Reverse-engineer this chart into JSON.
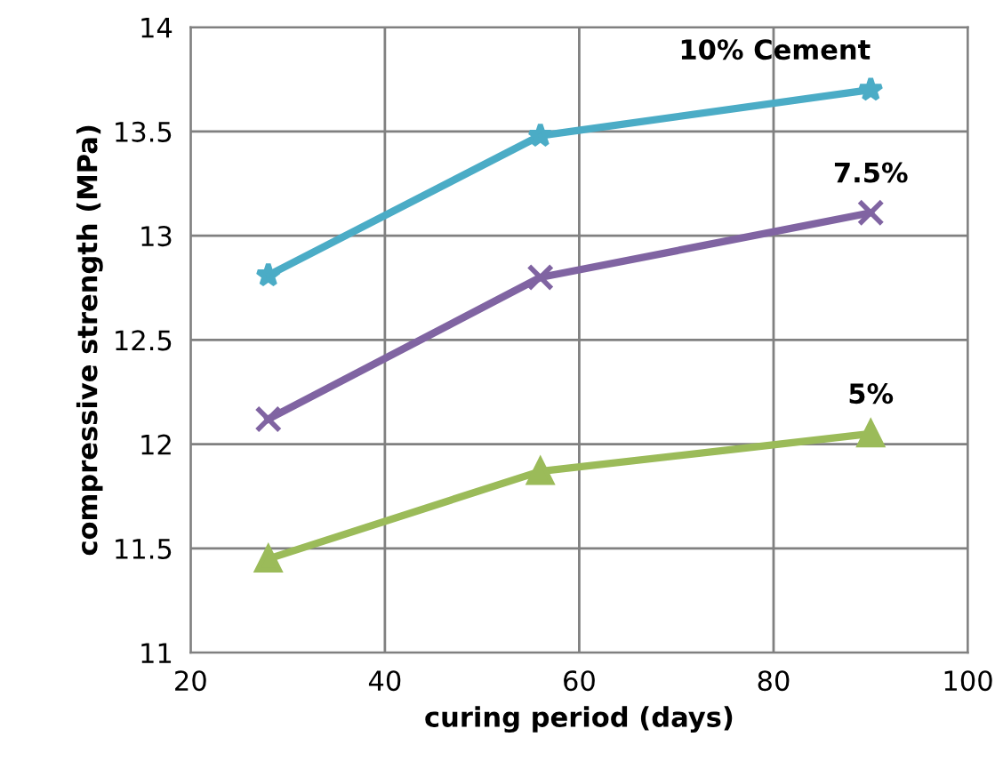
{
  "chart_data": {
    "type": "line",
    "xlabel": "curing period (days)",
    "ylabel": "compressive strength (MPa)",
    "x": [
      28,
      56,
      90
    ],
    "series": [
      {
        "name": "10% Cement",
        "color": "#4bacc6",
        "marker": "star",
        "values": [
          12.81,
          13.48,
          13.7
        ]
      },
      {
        "name": "7.5%",
        "color": "#8064a2",
        "marker": "cross",
        "values": [
          12.12,
          12.8,
          13.11
        ]
      },
      {
        "name": "5%",
        "color": "#9bbb59",
        "marker": "triangle",
        "values": [
          11.45,
          11.87,
          12.05
        ]
      }
    ],
    "xlim": [
      20,
      100
    ],
    "xticks": [
      20,
      40,
      60,
      80,
      100
    ],
    "ylim": [
      11,
      14
    ],
    "yticks": [
      11,
      11.5,
      12,
      12.5,
      13,
      13.5,
      14
    ],
    "grid": true,
    "legend": false,
    "line_style": "solid"
  }
}
